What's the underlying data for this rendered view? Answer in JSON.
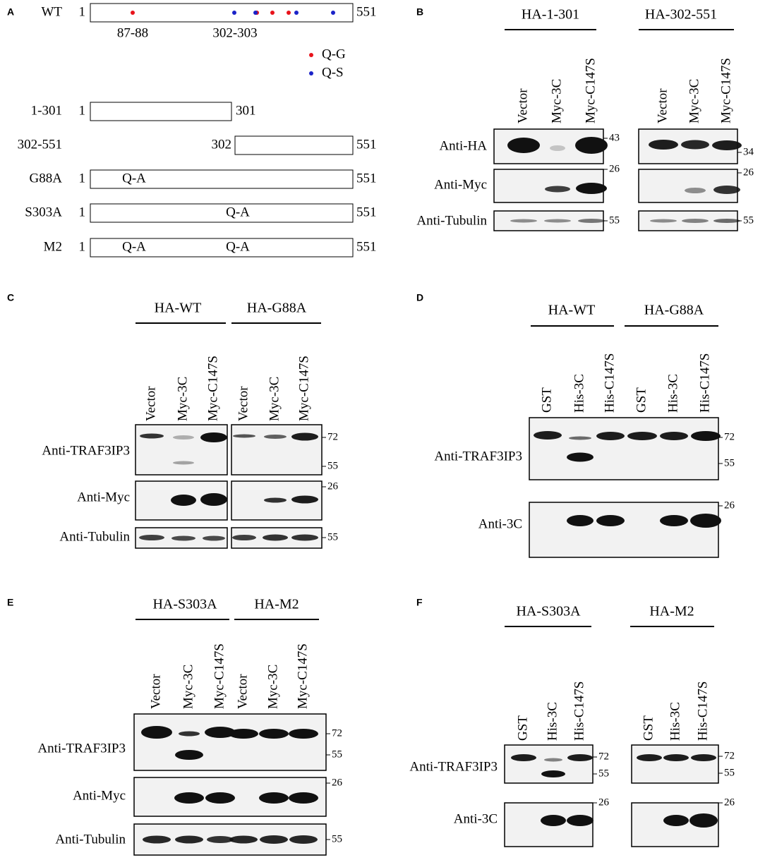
{
  "panel_a": {
    "label": "A",
    "constructs": [
      {
        "name": "WT",
        "start": "1",
        "end": "551"
      },
      {
        "name": "1-301",
        "start": "1",
        "end": "301"
      },
      {
        "name": "302-551",
        "start": "302",
        "end": "551"
      },
      {
        "name": "G88A",
        "start": "1",
        "end": "551",
        "sites": [
          "Q-A"
        ]
      },
      {
        "name": "S303A",
        "start": "1",
        "end": "551",
        "sites": [
          "Q-A"
        ]
      },
      {
        "name": "M2",
        "start": "1",
        "end": "551",
        "sites": [
          "Q-A",
          "Q-A"
        ]
      }
    ],
    "site_labels": [
      "87-88",
      "302-303"
    ],
    "legend": [
      "Q-G",
      "Q-S"
    ]
  },
  "panel_b": {
    "label": "B",
    "groups": [
      {
        "name": "HA-1-301",
        "lanes": [
          "Vector",
          "Myc-3C",
          "Myc-C147S"
        ]
      },
      {
        "name": "HA-302-551",
        "lanes": [
          "Vector",
          "Myc-3C",
          "Myc-C147S"
        ]
      }
    ],
    "antibodies": [
      "Anti-HA",
      "Anti-Myc",
      "Anti-Tubulin"
    ],
    "markers": [
      [
        [
          "43"
        ],
        [
          "26"
        ],
        [
          "55"
        ]
      ],
      [
        [
          "34"
        ],
        [
          "26"
        ],
        [
          "55"
        ]
      ]
    ]
  },
  "panel_c": {
    "label": "C",
    "groups": [
      {
        "name": "HA-WT",
        "lanes": [
          "Vector",
          "Myc-3C",
          "Myc-C147S"
        ]
      },
      {
        "name": "HA-G88A",
        "lanes": [
          "Vector",
          "Myc-3C",
          "Myc-C147S"
        ]
      }
    ],
    "antibodies": [
      "Anti-TRAF3IP3",
      "Anti-Myc",
      "Anti-Tubulin"
    ],
    "markers": [
      [
        [
          "72",
          "55"
        ],
        [
          "26"
        ],
        [
          "55"
        ]
      ]
    ]
  },
  "panel_d": {
    "label": "D",
    "groups": [
      {
        "name": "HA-WT",
        "lanes": [
          "GST",
          "His-3C",
          "His-C147S"
        ]
      },
      {
        "name": "HA-G88A",
        "lanes": [
          "GST",
          "His-3C",
          "His-C147S"
        ]
      }
    ],
    "antibodies": [
      "Anti-TRAF3IP3",
      "Anti-3C"
    ],
    "markers": [
      [
        [
          "72",
          "55"
        ],
        [
          "26"
        ]
      ]
    ]
  },
  "panel_e": {
    "label": "E",
    "groups": [
      {
        "name": "HA-S303A",
        "lanes": [
          "Vector",
          "Myc-3C",
          "Myc-C147S"
        ]
      },
      {
        "name": "HA-M2",
        "lanes": [
          "Vector",
          "Myc-3C",
          "Myc-C147S"
        ]
      }
    ],
    "antibodies": [
      "Anti-TRAF3IP3",
      "Anti-Myc",
      "Anti-Tubulin"
    ],
    "markers": [
      [
        [
          "72",
          "55"
        ],
        [
          "26"
        ],
        [
          "55"
        ]
      ]
    ]
  },
  "panel_f": {
    "label": "F",
    "groups": [
      {
        "name": "HA-S303A",
        "lanes": [
          "GST",
          "His-3C",
          "His-C147S"
        ]
      },
      {
        "name": "HA-M2",
        "lanes": [
          "GST",
          "His-3C",
          "His-C147S"
        ]
      }
    ],
    "antibodies": [
      "Anti-TRAF3IP3",
      "Anti-3C"
    ],
    "markers": [
      [
        [
          "72",
          "55"
        ],
        [
          "26"
        ]
      ],
      [
        [
          "72",
          "55"
        ],
        [
          "26"
        ]
      ]
    ]
  }
}
